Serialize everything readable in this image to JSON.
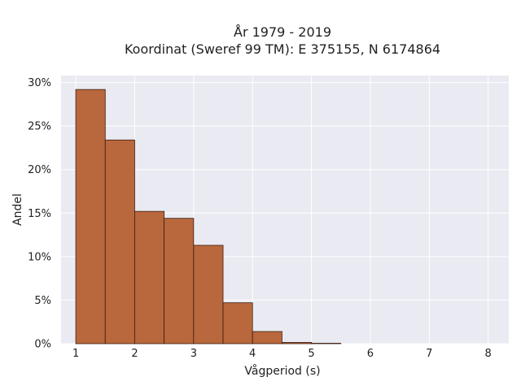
{
  "chart_data": {
    "type": "bar",
    "title_line1": "År 1979 - 2019",
    "title_line2": "Koordinat (Sweref 99 TM): E 375155, N 6174864",
    "xlabel": "Vågperiod (s)",
    "ylabel": "Andel",
    "xlim": [
      0.75,
      8.35
    ],
    "ylim": [
      0,
      30.8
    ],
    "x_ticks": [
      1,
      2,
      3,
      4,
      5,
      6,
      7,
      8
    ],
    "y_ticks": [
      0,
      5,
      10,
      15,
      20,
      25,
      30
    ],
    "y_tick_labels": [
      "0%",
      "5%",
      "10%",
      "15%",
      "20%",
      "25%",
      "30%"
    ],
    "bin_width": 0.5,
    "bins": [
      {
        "start": 1.0,
        "value": 29.2
      },
      {
        "start": 1.5,
        "value": 23.4
      },
      {
        "start": 2.0,
        "value": 15.2
      },
      {
        "start": 2.5,
        "value": 14.4
      },
      {
        "start": 3.0,
        "value": 11.3
      },
      {
        "start": 3.5,
        "value": 4.7
      },
      {
        "start": 4.0,
        "value": 1.4
      },
      {
        "start": 4.5,
        "value": 0.15
      },
      {
        "start": 5.0,
        "value": 0.05
      }
    ],
    "grid": true,
    "colors": {
      "bar_fill": "#b9673c",
      "bar_stroke": "#3a1e10",
      "plot_bg": "#eaeaf2",
      "grid": "#ffffff"
    }
  }
}
